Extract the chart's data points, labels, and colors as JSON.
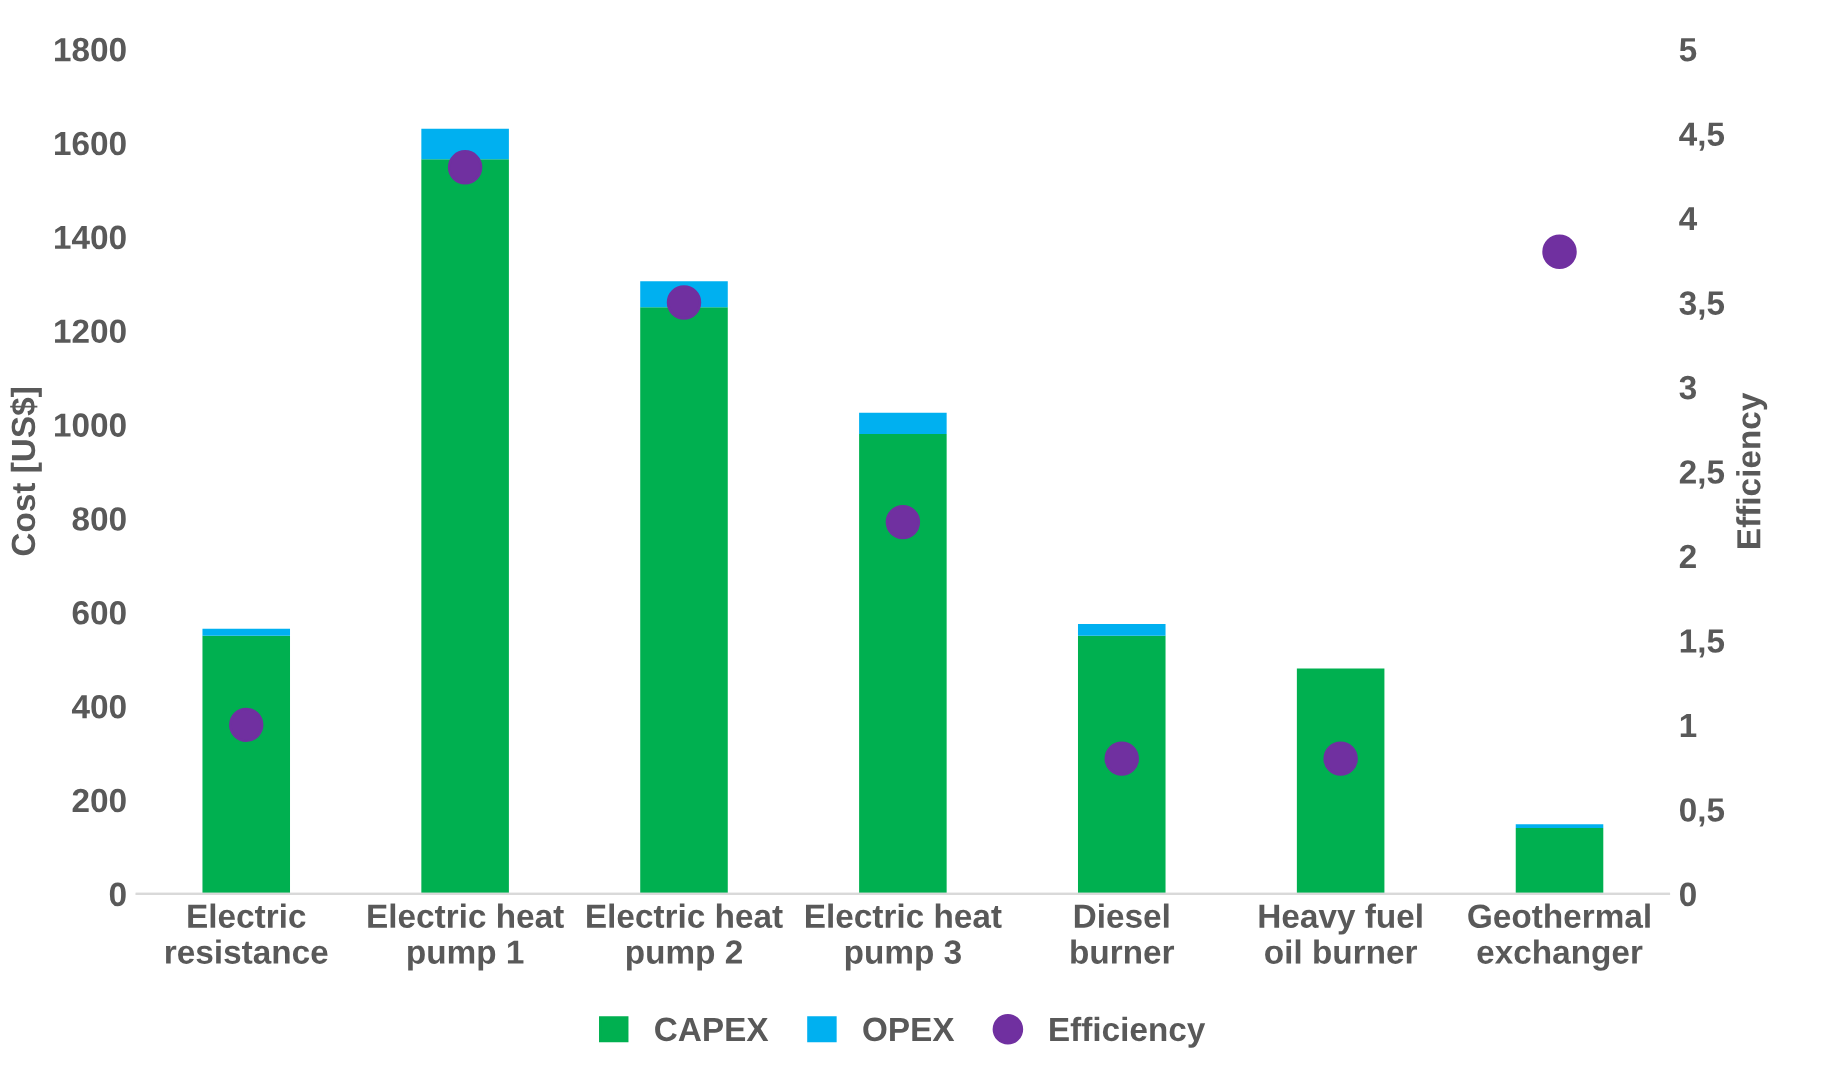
{
  "chart_data": {
    "type": "bar",
    "stacked": true,
    "ylabel": "Cost [US$]",
    "y2label": "Efficiency",
    "categories": [
      "Electric resistance",
      "Electric heat pump 1",
      "Electric heat pump 2",
      "Electric heat pump 3",
      "Diesel burner",
      "Heavy fuel oil burner",
      "Geothermal exchanger"
    ],
    "series": [
      {
        "name": "CAPEX",
        "color": "#00b050",
        "values": [
          550,
          1565,
          1250,
          980,
          550,
          480,
          140
        ]
      },
      {
        "name": "OPEX",
        "color": "#00b0f0",
        "values": [
          15,
          65,
          55,
          45,
          25,
          null,
          8
        ]
      },
      {
        "name": "Efficiency",
        "type": "scatter",
        "axis": "y2",
        "color": "#7030a0",
        "values": [
          1.0,
          4.3,
          3.5,
          2.2,
          0.8,
          0.8,
          3.8
        ]
      }
    ],
    "ylim": [
      0,
      1800
    ],
    "yticks": [
      0,
      200,
      400,
      600,
      800,
      1000,
      1200,
      1400,
      1600,
      1800
    ],
    "y2lim": [
      0,
      5
    ],
    "y2ticks": [
      0,
      {
        "value": 0.5,
        "label": "0,5"
      },
      1,
      {
        "value": 1.5,
        "label": "1,5"
      },
      2,
      {
        "value": 2.5,
        "label": "2,5"
      },
      3,
      {
        "value": 3.5,
        "label": "3,5"
      },
      4,
      {
        "value": 4.5,
        "label": "4,5"
      },
      5
    ],
    "marker": "circle",
    "legend": "bottom",
    "grid": false
  }
}
